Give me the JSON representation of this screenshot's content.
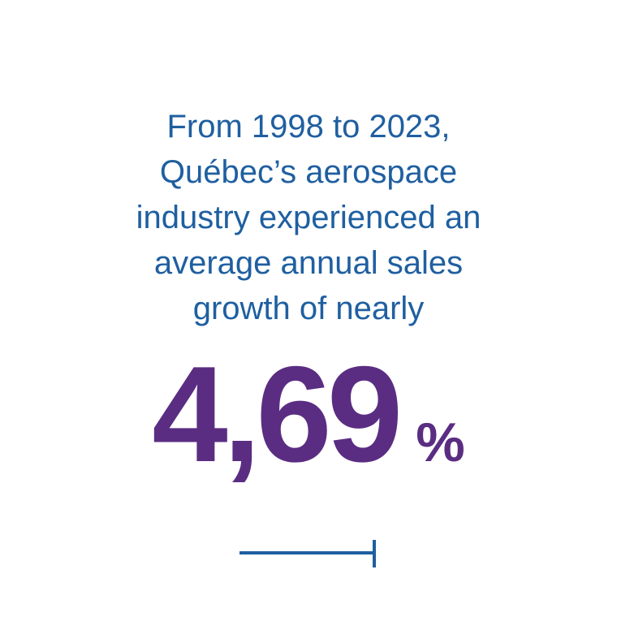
{
  "headline": {
    "lines": [
      "From 1998 to 2023,",
      "Québec’s aerospace",
      "industry experienced an",
      "average annual sales",
      "growth of nearly"
    ]
  },
  "stat": {
    "value": "4,69",
    "unit": "%"
  },
  "colors": {
    "headline_text": "#1f5fa0",
    "stat_text": "#5a2d82",
    "rule": "#1f5fa0",
    "background": "#ffffff"
  }
}
